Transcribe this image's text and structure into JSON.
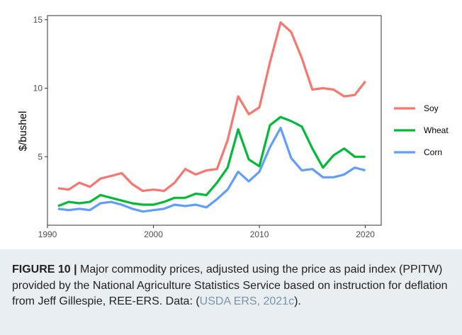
{
  "chart_data": {
    "type": "line",
    "title": "",
    "xlabel": "",
    "ylabel": "$/bushel",
    "xlim": [
      1990,
      2021.5
    ],
    "ylim": [
      0,
      15.3
    ],
    "x_ticks": [
      1990,
      2000,
      2010,
      2020
    ],
    "y_ticks": [
      5,
      10,
      15
    ],
    "grid": false,
    "legend_position": "right",
    "x": [
      1991,
      1992,
      1993,
      1994,
      1995,
      1996,
      1997,
      1998,
      1999,
      2000,
      2001,
      2002,
      2003,
      2004,
      2005,
      2006,
      2007,
      2008,
      2009,
      2010,
      2011,
      2012,
      2013,
      2014,
      2015,
      2016,
      2017,
      2018,
      2019,
      2020
    ],
    "series": [
      {
        "name": "Soy",
        "color": "#F8766D",
        "values": [
          2.7,
          2.6,
          3.1,
          2.8,
          3.4,
          3.6,
          3.8,
          3.0,
          2.5,
          2.6,
          2.5,
          3.1,
          4.1,
          3.7,
          4.0,
          4.1,
          6.2,
          9.4,
          8.1,
          8.6,
          11.9,
          14.8,
          14.1,
          12.2,
          9.9,
          10.0,
          9.9,
          9.4,
          9.5,
          10.5
        ]
      },
      {
        "name": "Wheat",
        "color": "#00BA38",
        "values": [
          1.4,
          1.7,
          1.6,
          1.7,
          2.2,
          2.0,
          1.8,
          1.6,
          1.5,
          1.5,
          1.7,
          2.0,
          2.0,
          2.3,
          2.2,
          3.1,
          4.2,
          7.0,
          4.8,
          4.3,
          7.3,
          7.9,
          7.6,
          7.2,
          5.6,
          4.2,
          5.1,
          5.6,
          5.0,
          5.0
        ]
      },
      {
        "name": "Corn",
        "color": "#619CFF",
        "values": [
          1.2,
          1.1,
          1.2,
          1.1,
          1.6,
          1.7,
          1.5,
          1.2,
          1.0,
          1.1,
          1.2,
          1.5,
          1.4,
          1.5,
          1.3,
          1.9,
          2.6,
          3.9,
          3.2,
          3.9,
          5.7,
          7.1,
          4.9,
          4.0,
          4.1,
          3.5,
          3.5,
          3.7,
          4.2,
          4.0
        ]
      }
    ]
  },
  "caption": {
    "label": "FIGURE 10 |",
    "text": " Major commodity prices, adjusted using the price as paid index (PPITW) provided by the National Agriculture Statistics Service based on instruction for deflation from Jeff Gillespie, REE-ERS. Data: (",
    "citation": "USDA ERS, 2021c",
    "end": ")."
  }
}
